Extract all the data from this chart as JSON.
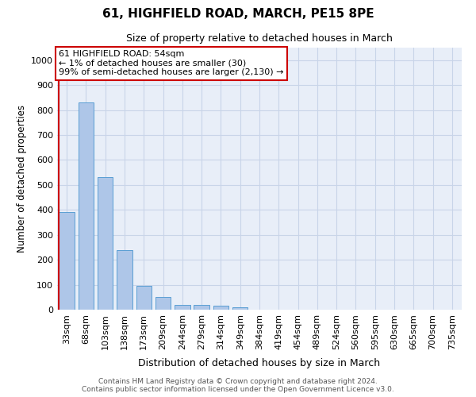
{
  "title": "61, HIGHFIELD ROAD, MARCH, PE15 8PE",
  "subtitle": "Size of property relative to detached houses in March",
  "xlabel": "Distribution of detached houses by size in March",
  "ylabel": "Number of detached properties",
  "categories": [
    "33sqm",
    "68sqm",
    "103sqm",
    "138sqm",
    "173sqm",
    "209sqm",
    "244sqm",
    "279sqm",
    "314sqm",
    "349sqm",
    "384sqm",
    "419sqm",
    "454sqm",
    "489sqm",
    "524sqm",
    "560sqm",
    "595sqm",
    "630sqm",
    "665sqm",
    "700sqm",
    "735sqm"
  ],
  "values": [
    390,
    830,
    530,
    240,
    95,
    52,
    20,
    18,
    15,
    10,
    0,
    0,
    0,
    0,
    0,
    0,
    0,
    0,
    0,
    0,
    0
  ],
  "bar_color": "#aec6e8",
  "bar_edge_color": "#5a9fd4",
  "grid_color": "#c8d4e8",
  "background_color": "#e8eef8",
  "vline_color": "#cc0000",
  "annotation_text": "61 HIGHFIELD ROAD: 54sqm\n← 1% of detached houses are smaller (30)\n99% of semi-detached houses are larger (2,130) →",
  "annotation_box_color": "#cc0000",
  "ylim": [
    0,
    1050
  ],
  "yticks": [
    0,
    100,
    200,
    300,
    400,
    500,
    600,
    700,
    800,
    900,
    1000
  ],
  "footnote1": "Contains HM Land Registry data © Crown copyright and database right 2024.",
  "footnote2": "Contains public sector information licensed under the Open Government Licence v3.0."
}
